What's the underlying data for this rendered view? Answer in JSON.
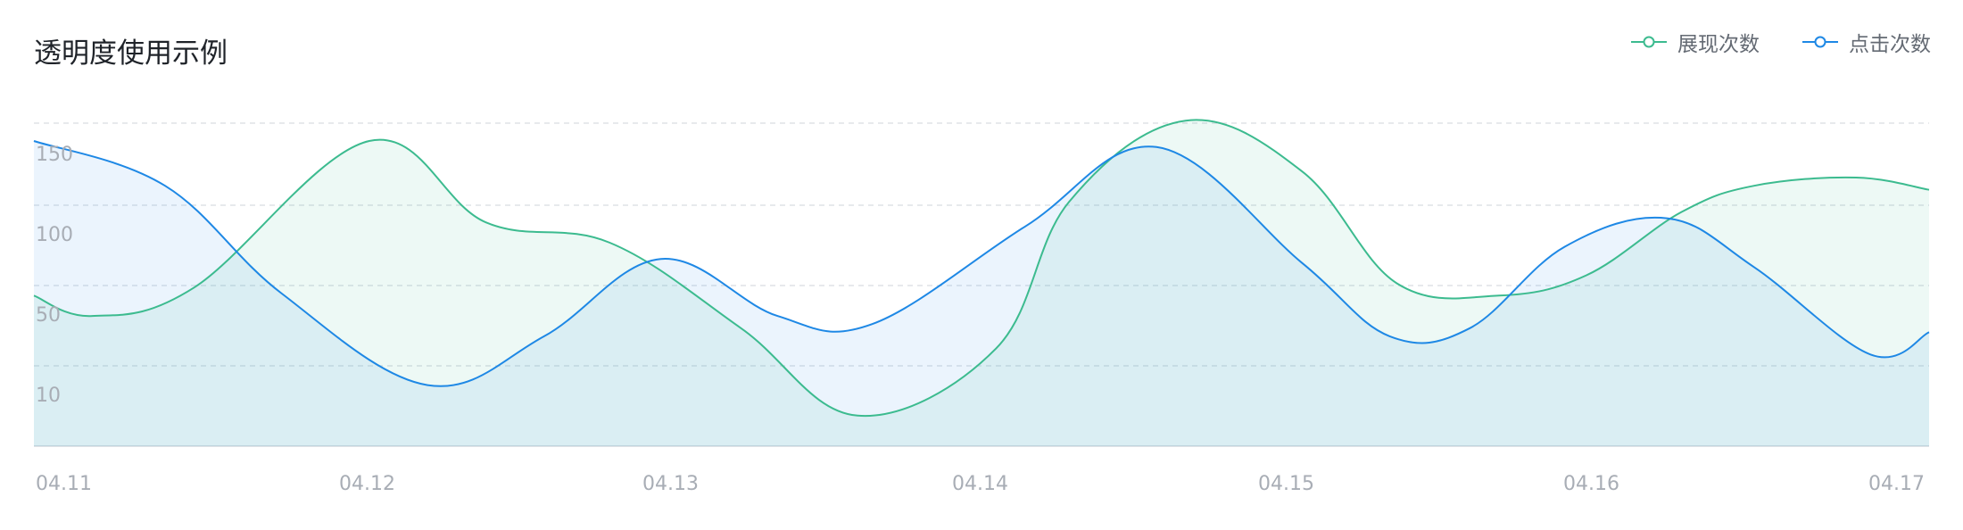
{
  "chart_data": {
    "type": "area",
    "title": "透明度使用示例",
    "categories": [
      "04.11",
      "04.12",
      "04.13",
      "04.14",
      "04.15",
      "04.16",
      "04.17"
    ],
    "y_tick_labels": [
      "10",
      "50",
      "100",
      "150"
    ],
    "legend_position": "top-right",
    "grid": true,
    "series": [
      {
        "name": "展现次数",
        "color": "#3cbb8f",
        "fill": "rgba(60,187,143,0.09)",
        "x": [
          0,
          0.4,
          1.1,
          2.3,
          3.1,
          3.95,
          4.85,
          5.65,
          6.6,
          7.1,
          7.9,
          8.7,
          9.35,
          10.05,
          10.65,
          11.3,
          11.8,
          12.5,
          13.0
        ],
        "y": [
          74,
          64,
          78,
          150,
          110,
          100,
          58,
          15,
          48,
          120,
          160,
          135,
          80,
          74,
          84,
          115,
          128,
          132,
          126
        ]
      },
      {
        "name": "点击次数",
        "color": "#1e88e5",
        "fill": "rgba(30,136,229,0.09)",
        "x": [
          0,
          0.9,
          1.7,
          2.7,
          3.5,
          4.3,
          5.1,
          5.75,
          6.8,
          7.7,
          8.7,
          9.3,
          9.85,
          10.5,
          11.2,
          11.8,
          12.6,
          13.0
        ],
        "y": [
          150,
          128,
          75,
          30,
          54,
          92,
          64,
          60,
          108,
          147,
          90,
          54,
          58,
          98,
          112,
          88,
          45,
          56
        ]
      }
    ]
  }
}
